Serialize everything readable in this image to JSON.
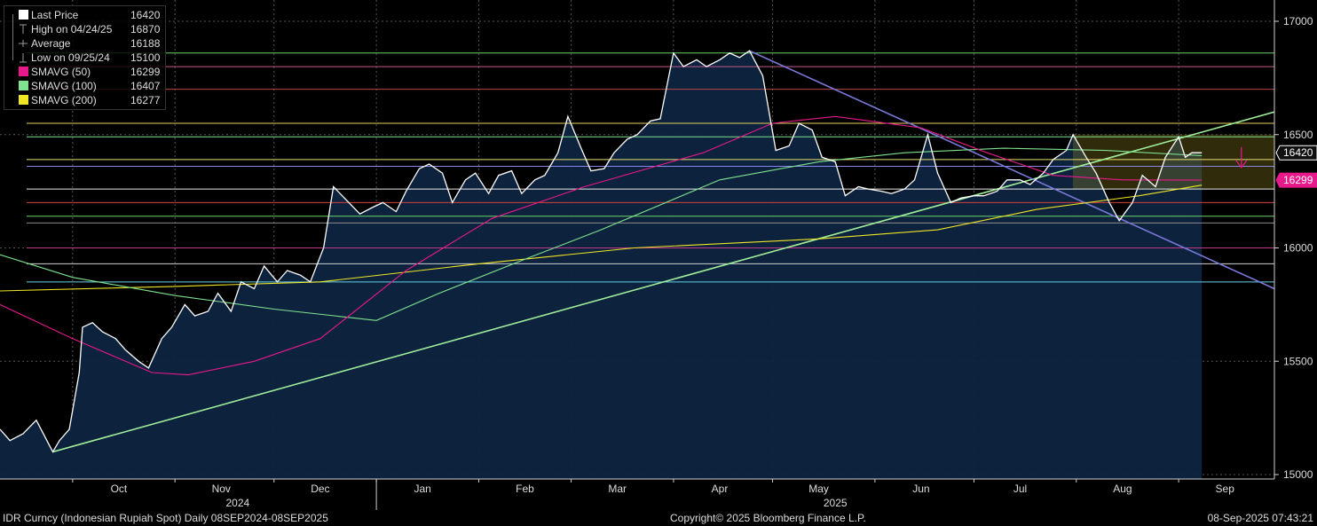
{
  "chart_data": {
    "type": "line",
    "y_range": [
      15000,
      17000
    ],
    "y_ticks": [
      15000,
      15500,
      16000,
      16500,
      17000
    ],
    "x_start": "2024-09-09",
    "x_end": "2025-09-30",
    "month_labels": [
      {
        "label": "Oct",
        "date": "2024-10-15"
      },
      {
        "label": "Nov",
        "date": "2024-11-15"
      },
      {
        "label": "Dec",
        "date": "2024-12-15"
      },
      {
        "label": "Jan",
        "date": "2025-01-15"
      },
      {
        "label": "Feb",
        "date": "2025-02-15"
      },
      {
        "label": "Mar",
        "date": "2025-03-15"
      },
      {
        "label": "Apr",
        "date": "2025-04-15"
      },
      {
        "label": "May",
        "date": "2025-05-15"
      },
      {
        "label": "Jun",
        "date": "2025-06-15"
      },
      {
        "label": "Jul",
        "date": "2025-07-15"
      },
      {
        "label": "Aug",
        "date": "2025-08-15"
      },
      {
        "label": "Sep",
        "date": "2025-09-15"
      }
    ],
    "month_boundaries": [
      "2024-10-01",
      "2024-11-01",
      "2024-12-01",
      "2025-01-01",
      "2025-02-01",
      "2025-03-01",
      "2025-04-01",
      "2025-05-01",
      "2025-06-01",
      "2025-07-01",
      "2025-08-01",
      "2025-09-01"
    ],
    "year_labels": [
      {
        "label": "2024",
        "date": "2024-11-20"
      },
      {
        "label": "2025",
        "date": "2025-05-20"
      }
    ],
    "year_divider": "2025-01-01",
    "last_price_marker": {
      "value": 16420,
      "label": "16420",
      "color": "#ffffff"
    },
    "sma50_marker": {
      "value": 16299,
      "label": "16299",
      "color": "#e8198b"
    },
    "legend": [
      {
        "label": "Last Price",
        "value": "16420",
        "marker": "square",
        "color": "#ffffff"
      },
      {
        "label": "High on 04/24/25",
        "value": "16870",
        "marker": "high",
        "color": "#aaaaaa"
      },
      {
        "label": "Average",
        "value": "16188",
        "marker": "avg",
        "color": "#aaaaaa"
      },
      {
        "label": "Low on 09/25/24",
        "value": "15100",
        "marker": "low",
        "color": "#aaaaaa"
      },
      {
        "label": "SMAVG (50)",
        "value": "16299",
        "marker": "square",
        "color": "#e8198b"
      },
      {
        "label": "SMAVG (100)",
        "value": "16407",
        "marker": "square",
        "color": "#7fe38f"
      },
      {
        "label": "SMAVG (200)",
        "value": "16277",
        "marker": "square",
        "color": "#f0e626"
      }
    ],
    "series": [
      {
        "name": "Last Price",
        "color": "#ffffff",
        "points": [
          [
            "2024-09-09",
            15200
          ],
          [
            "2024-09-12",
            15150
          ],
          [
            "2024-09-16",
            15180
          ],
          [
            "2024-09-20",
            15240
          ],
          [
            "2024-09-25",
            15100
          ],
          [
            "2024-09-27",
            15150
          ],
          [
            "2024-09-30",
            15200
          ],
          [
            "2024-10-03",
            15450
          ],
          [
            "2024-10-04",
            15650
          ],
          [
            "2024-10-07",
            15670
          ],
          [
            "2024-10-10",
            15630
          ],
          [
            "2024-10-14",
            15600
          ],
          [
            "2024-10-17",
            15550
          ],
          [
            "2024-10-21",
            15500
          ],
          [
            "2024-10-24",
            15470
          ],
          [
            "2024-10-28",
            15600
          ],
          [
            "2024-10-31",
            15650
          ],
          [
            "2024-11-04",
            15750
          ],
          [
            "2024-11-07",
            15700
          ],
          [
            "2024-11-11",
            15720
          ],
          [
            "2024-11-14",
            15800
          ],
          [
            "2024-11-18",
            15720
          ],
          [
            "2024-11-21",
            15850
          ],
          [
            "2024-11-25",
            15820
          ],
          [
            "2024-11-28",
            15920
          ],
          [
            "2024-12-02",
            15850
          ],
          [
            "2024-12-05",
            15900
          ],
          [
            "2024-12-09",
            15880
          ],
          [
            "2024-12-12",
            15850
          ],
          [
            "2024-12-16",
            16000
          ],
          [
            "2024-12-19",
            16270
          ],
          [
            "2024-12-23",
            16210
          ],
          [
            "2024-12-27",
            16150
          ],
          [
            "2024-12-31",
            16180
          ],
          [
            "2025-01-03",
            16200
          ],
          [
            "2025-01-07",
            16160
          ],
          [
            "2025-01-10",
            16250
          ],
          [
            "2025-01-14",
            16350
          ],
          [
            "2025-01-17",
            16370
          ],
          [
            "2025-01-21",
            16330
          ],
          [
            "2025-01-24",
            16200
          ],
          [
            "2025-01-28",
            16300
          ],
          [
            "2025-01-31",
            16330
          ],
          [
            "2025-02-04",
            16240
          ],
          [
            "2025-02-07",
            16320
          ],
          [
            "2025-02-11",
            16340
          ],
          [
            "2025-02-14",
            16240
          ],
          [
            "2025-02-18",
            16300
          ],
          [
            "2025-02-21",
            16320
          ],
          [
            "2025-02-25",
            16420
          ],
          [
            "2025-02-28",
            16580
          ],
          [
            "2025-03-04",
            16440
          ],
          [
            "2025-03-07",
            16340
          ],
          [
            "2025-03-11",
            16350
          ],
          [
            "2025-03-14",
            16420
          ],
          [
            "2025-03-18",
            16480
          ],
          [
            "2025-03-21",
            16500
          ],
          [
            "2025-03-25",
            16560
          ],
          [
            "2025-03-28",
            16570
          ],
          [
            "2025-04-01",
            16860
          ],
          [
            "2025-04-04",
            16800
          ],
          [
            "2025-04-08",
            16830
          ],
          [
            "2025-04-11",
            16800
          ],
          [
            "2025-04-15",
            16830
          ],
          [
            "2025-04-18",
            16860
          ],
          [
            "2025-04-21",
            16840
          ],
          [
            "2025-04-24",
            16870
          ],
          [
            "2025-04-28",
            16760
          ],
          [
            "2025-05-02",
            16430
          ],
          [
            "2025-05-06",
            16450
          ],
          [
            "2025-05-09",
            16550
          ],
          [
            "2025-05-13",
            16520
          ],
          [
            "2025-05-16",
            16400
          ],
          [
            "2025-05-20",
            16380
          ],
          [
            "2025-05-23",
            16230
          ],
          [
            "2025-05-27",
            16270
          ],
          [
            "2025-05-30",
            16260
          ],
          [
            "2025-06-03",
            16250
          ],
          [
            "2025-06-06",
            16240
          ],
          [
            "2025-06-10",
            16260
          ],
          [
            "2025-06-13",
            16300
          ],
          [
            "2025-06-17",
            16500
          ],
          [
            "2025-06-20",
            16330
          ],
          [
            "2025-06-24",
            16200
          ],
          [
            "2025-06-27",
            16220
          ],
          [
            "2025-07-01",
            16230
          ],
          [
            "2025-07-04",
            16230
          ],
          [
            "2025-07-08",
            16250
          ],
          [
            "2025-07-11",
            16300
          ],
          [
            "2025-07-15",
            16300
          ],
          [
            "2025-07-18",
            16280
          ],
          [
            "2025-07-22",
            16330
          ],
          [
            "2025-07-25",
            16390
          ],
          [
            "2025-07-29",
            16430
          ],
          [
            "2025-07-31",
            16500
          ],
          [
            "2025-08-04",
            16400
          ],
          [
            "2025-08-07",
            16330
          ],
          [
            "2025-08-11",
            16200
          ],
          [
            "2025-08-14",
            16120
          ],
          [
            "2025-08-18",
            16200
          ],
          [
            "2025-08-21",
            16320
          ],
          [
            "2025-08-25",
            16270
          ],
          [
            "2025-08-28",
            16400
          ],
          [
            "2025-09-01",
            16490
          ],
          [
            "2025-09-03",
            16400
          ],
          [
            "2025-09-05",
            16420
          ],
          [
            "2025-09-08",
            16420
          ]
        ]
      },
      {
        "name": "SMAVG (50)",
        "color": "#e8198b",
        "points": [
          [
            "2024-09-09",
            15750
          ],
          [
            "2024-10-01",
            15600
          ],
          [
            "2024-10-25",
            15450
          ],
          [
            "2024-11-05",
            15440
          ],
          [
            "2024-11-25",
            15500
          ],
          [
            "2024-12-15",
            15600
          ],
          [
            "2025-01-10",
            15900
          ],
          [
            "2025-02-05",
            16130
          ],
          [
            "2025-03-05",
            16270
          ],
          [
            "2025-04-10",
            16420
          ],
          [
            "2025-05-01",
            16550
          ],
          [
            "2025-05-20",
            16580
          ],
          [
            "2025-06-15",
            16530
          ],
          [
            "2025-07-05",
            16420
          ],
          [
            "2025-07-25",
            16320
          ],
          [
            "2025-08-15",
            16300
          ],
          [
            "2025-09-08",
            16299
          ]
        ]
      },
      {
        "name": "SMAVG (100)",
        "color": "#7fe38f",
        "points": [
          [
            "2024-09-09",
            15970
          ],
          [
            "2024-10-01",
            15870
          ],
          [
            "2024-11-01",
            15790
          ],
          [
            "2024-12-01",
            15730
          ],
          [
            "2025-01-01",
            15680
          ],
          [
            "2025-01-20",
            15800
          ],
          [
            "2025-02-15",
            15950
          ],
          [
            "2025-03-10",
            16080
          ],
          [
            "2025-04-15",
            16300
          ],
          [
            "2025-05-15",
            16380
          ],
          [
            "2025-06-10",
            16420
          ],
          [
            "2025-07-10",
            16440
          ],
          [
            "2025-08-10",
            16430
          ],
          [
            "2025-09-08",
            16407
          ]
        ]
      },
      {
        "name": "SMAVG (200)",
        "color": "#f0e626",
        "points": [
          [
            "2024-09-09",
            15810
          ],
          [
            "2024-11-01",
            15830
          ],
          [
            "2024-12-15",
            15850
          ],
          [
            "2025-02-01",
            15930
          ],
          [
            "2025-03-20",
            16000
          ],
          [
            "2025-05-15",
            16040
          ],
          [
            "2025-06-20",
            16080
          ],
          [
            "2025-07-20",
            16170
          ],
          [
            "2025-08-20",
            16230
          ],
          [
            "2025-09-08",
            16277
          ]
        ]
      }
    ],
    "horizontal_lines": [
      {
        "value": 15850,
        "color": "#63d0e8"
      },
      {
        "value": 15930,
        "color": "#cfcfcf"
      },
      {
        "value": 16000,
        "color": "#c13a8a"
      },
      {
        "value": 16110,
        "color": "#8c8c8c"
      },
      {
        "value": 16140,
        "color": "#6bd46b"
      },
      {
        "value": 16200,
        "color": "#d84040"
      },
      {
        "value": 16260,
        "color": "#e8e8e8"
      },
      {
        "value": 16360,
        "color": "#8a86e8"
      },
      {
        "value": 16390,
        "color": "#e8e070"
      },
      {
        "value": 16490,
        "color": "#7fe38f"
      },
      {
        "value": 16550,
        "color": "#e8d060"
      },
      {
        "value": 16700,
        "color": "#b84848"
      },
      {
        "value": 16800,
        "color": "#c45a8a"
      },
      {
        "value": 16860,
        "color": "#6bd46b"
      }
    ],
    "trend_lines": [
      {
        "from": [
          "2024-09-25",
          15100
        ],
        "to": [
          "2025-09-30",
          16600
        ],
        "color": "#a0ee9a"
      },
      {
        "from": [
          "2025-04-24",
          16870
        ],
        "to": [
          "2025-09-30",
          15820
        ],
        "color": "#7a78d8"
      }
    ],
    "forecast_box": {
      "from": [
        "2025-07-31",
        16500
      ],
      "to": [
        "2025-09-30",
        16260
      ],
      "color": "#8a7a20"
    },
    "forecast_arrow": {
      "at": [
        "2025-09-20",
        16390
      ],
      "color": "#e8198b"
    }
  },
  "footer": {
    "left": "IDR Curncy (Indonesian Rupiah Spot)  Daily 08SEP2024-08SEP2025",
    "center": "Copyright© 2025 Bloomberg Finance L.P.",
    "right": "08-Sep-2025 07:43:21"
  }
}
